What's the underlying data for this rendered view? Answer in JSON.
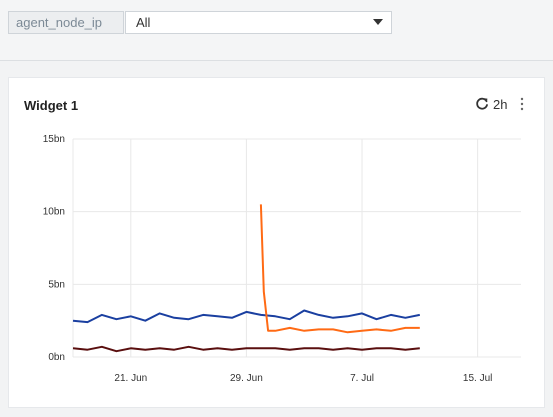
{
  "filter": {
    "label": "agent_node_ip",
    "selected": "All"
  },
  "widget": {
    "title": "Widget 1",
    "time_range": "2h",
    "refresh_icon": "refresh-icon",
    "menu_icon": "kebab-menu-icon"
  },
  "colors": {
    "series_blue": "#1a3fa0",
    "series_orange": "#ff6a14",
    "series_darkred": "#5a0f0f",
    "grid": "#e8e8e8"
  },
  "chart_data": {
    "type": "line",
    "title": "",
    "xlabel": "",
    "ylabel": "",
    "x_ticks": [
      "21. Jun",
      "29. Jun",
      "7. Jul",
      "15. Jul"
    ],
    "y_ticks": [
      "0bn",
      "5bn",
      "10bn",
      "15bn"
    ],
    "x_range_days": [
      0,
      31
    ],
    "ylim": [
      0,
      15
    ],
    "grid": true,
    "legend": "none",
    "series": [
      {
        "color": "#1a3fa0",
        "x": [
          0,
          1,
          2,
          3,
          4,
          5,
          6,
          7,
          8,
          9,
          10,
          11,
          12,
          13,
          14,
          15,
          16,
          17,
          18,
          19,
          20,
          21,
          22,
          23,
          24
        ],
        "y": [
          2.5,
          2.4,
          2.9,
          2.6,
          2.8,
          2.5,
          3.0,
          2.7,
          2.6,
          2.9,
          2.8,
          2.7,
          3.1,
          2.9,
          2.8,
          2.6,
          3.2,
          2.9,
          2.7,
          2.8,
          3.0,
          2.6,
          2.9,
          2.7,
          2.9
        ]
      },
      {
        "color": "#ff6a14",
        "x": [
          13,
          13.2,
          13.5,
          14,
          15,
          16,
          17,
          18,
          19,
          20,
          21,
          22,
          23,
          24
        ],
        "y": [
          10.5,
          4.5,
          1.8,
          1.8,
          2.0,
          1.8,
          1.9,
          1.9,
          1.7,
          1.8,
          1.9,
          1.8,
          2.0,
          2.0
        ]
      },
      {
        "color": "#5a0f0f",
        "x": [
          0,
          1,
          2,
          3,
          4,
          5,
          6,
          7,
          8,
          9,
          10,
          11,
          12,
          13,
          14,
          15,
          16,
          17,
          18,
          19,
          20,
          21,
          22,
          23,
          24
        ],
        "y": [
          0.6,
          0.5,
          0.7,
          0.4,
          0.6,
          0.5,
          0.6,
          0.5,
          0.7,
          0.5,
          0.6,
          0.5,
          0.6,
          0.6,
          0.6,
          0.5,
          0.6,
          0.6,
          0.5,
          0.6,
          0.5,
          0.6,
          0.6,
          0.5,
          0.6
        ]
      }
    ]
  }
}
